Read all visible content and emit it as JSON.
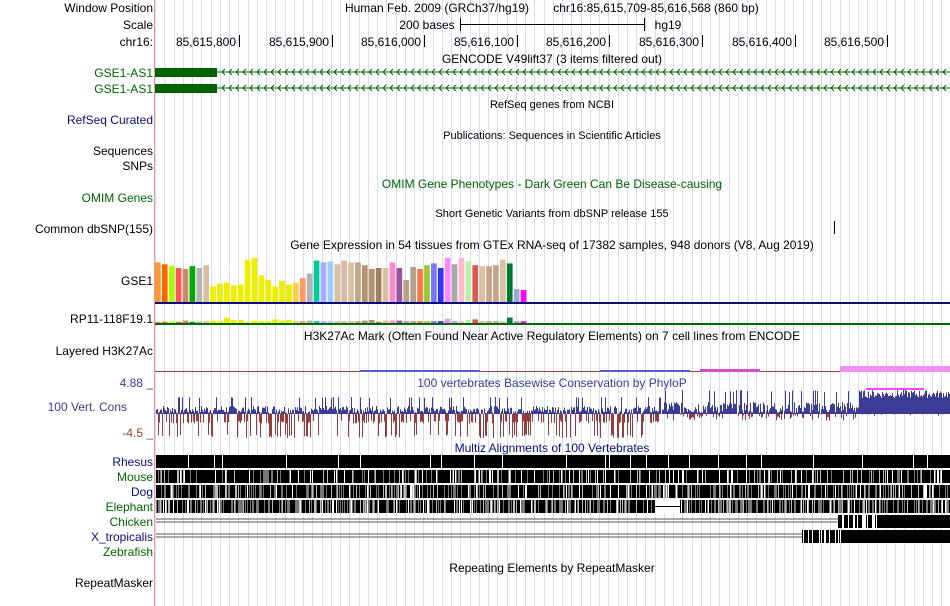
{
  "header": {
    "window_position_label": "Window Position",
    "scale_label": "Scale",
    "chrom_label": "chr16:",
    "assembly": "Human Feb. 2009 (GRCh37/hg19)",
    "position": "chr16:85,615,709-85,616,568 (860 bp)",
    "scale_text": "200 bases",
    "db": "hg19",
    "ticks": [
      {
        "label": "85,615,800",
        "pos": 85615800
      },
      {
        "label": "85,615,900",
        "pos": 85615900
      },
      {
        "label": "85,616,000",
        "pos": 85616000
      },
      {
        "label": "85,616,100",
        "pos": 85616100
      },
      {
        "label": "85,616,200",
        "pos": 85616200
      },
      {
        "label": "85,616,300",
        "pos": 85616300
      },
      {
        "label": "85,616,400",
        "pos": 85616400
      },
      {
        "label": "85,616,500",
        "pos": 85616500
      }
    ]
  },
  "tracks": {
    "gencode": {
      "title": "GENCODE V49lift37 (3 items filtered out)",
      "items": [
        "GSE1-AS1",
        "GSE1-AS1"
      ],
      "color": "#006400"
    },
    "refseq": {
      "title": "RefSeq genes from NCBI",
      "label": "RefSeq Curated",
      "color": "#0c0c78"
    },
    "publications": {
      "title": "Publications: Sequences in Scientific Articles",
      "label1": "Sequences",
      "label2": "SNPs"
    },
    "omim": {
      "title": "OMIM Gene Phenotypes - Dark Green Can Be Disease-causing",
      "label": "OMIM Genes",
      "color": "#006400"
    },
    "dbsnp": {
      "title": "Short Genetic Variants from dbSNP release 155",
      "label": "Common dbSNP(155)"
    },
    "gtex": {
      "title": "Gene Expression in 54 tissues from GTEx RNA-seq of 17382 samples, 948 donors (V8, Aug 2019)",
      "genes": [
        "GSE1",
        "RP11-118F19.1"
      ],
      "bar_colors": [
        "#ff9933",
        "#ff6600",
        "#aaff00",
        "#ff5555",
        "#cc8866",
        "#00aa00",
        "#b4b4b4",
        "#d9c0a0",
        "#eeee00",
        "#eeee00",
        "#eeee00",
        "#eeee00",
        "#eeee00",
        "#eeee00",
        "#eeee00",
        "#eeee00",
        "#eeee00",
        "#eeee00",
        "#eeee00",
        "#eeee00",
        "#ffcc44",
        "#ff9966",
        "#b4b4b4",
        "#00cc99",
        "#aaaaff",
        "#99ccff",
        "#d9c0a0",
        "#e0b8a8",
        "#d9c0a0",
        "#c4a48a",
        "#b49470",
        "#b49470",
        "#a08060",
        "#d9c0a0",
        "#ff88cc",
        "#995599",
        "#b4a088",
        "#b4a088",
        "#ff7744",
        "#99cc33",
        "#7777ff",
        "#3333ff",
        "#ff88ff",
        "#aaaaaa",
        "#ffbbcc",
        "#bbeeaa",
        "#dd5555",
        "#d9c0a0",
        "#c4a48a",
        "#c4a48a",
        "#d9c0a0",
        "#007733",
        "#99aacc",
        "#ff00ff"
      ],
      "gse1_values": [
        0.86,
        0.82,
        0.78,
        0.74,
        0.72,
        0.78,
        0.74,
        0.8,
        0.34,
        0.4,
        0.42,
        0.36,
        0.38,
        0.92,
        0.96,
        0.58,
        0.48,
        0.34,
        0.46,
        0.38,
        0.42,
        0.52,
        0.62,
        0.9,
        0.86,
        0.88,
        0.82,
        0.9,
        0.86,
        0.86,
        0.8,
        0.72,
        0.74,
        0.74,
        0.86,
        0.74,
        0.48,
        0.76,
        0.72,
        0.8,
        0.84,
        0.74,
        0.96,
        0.82,
        0.96,
        0.88,
        0.8,
        0.78,
        0.78,
        0.8,
        0.92,
        0.84,
        0.28,
        0.26
      ],
      "rp11_values": [
        0.2,
        0.2,
        0.25,
        0.2,
        0.4,
        0.2,
        0.25,
        0.3,
        0.4,
        0.3,
        0.9,
        0.5,
        0.5,
        0.2,
        0.4,
        0.3,
        0.3,
        0.6,
        0.4,
        0.5,
        0.3,
        0.3,
        0.4,
        0.3,
        0.3,
        0.3,
        0.3,
        0.3,
        0.3,
        0.3,
        0.4,
        0.5,
        0.2,
        0.4,
        0.4,
        0.4,
        0.3,
        0.3,
        0.3,
        0.3,
        0.3,
        0.3,
        0.7,
        0.3,
        0.3,
        0.5,
        0.6,
        0.3,
        0.3,
        0.3,
        0.3,
        0.9,
        0.3,
        0.3
      ]
    },
    "h3k27ac": {
      "title": "H3K27Ac Mark (Often Found Near Active Regulatory Elements) on 7 cell lines from ENCODE",
      "label": "Layered H3K27Ac"
    },
    "conservation": {
      "title": "100 vertebrates Basewise Conservation by PhyloP",
      "label": "100 Vert. Cons",
      "max": "4.88 _",
      "min": "-4.5 _",
      "pos_color": "#3c3c96",
      "neg_color": "#963c3c"
    },
    "multiz": {
      "title": "Multiz Alignments of 100 Vertebrates",
      "species": [
        "Rhesus",
        "Mouse",
        "Dog",
        "Elephant",
        "Chicken",
        "X_tropicalis",
        "Zebrafish"
      ]
    },
    "repeatmasker": {
      "title": "Repeating Elements by RepeatMasker",
      "label": "RepeatMasker"
    }
  }
}
